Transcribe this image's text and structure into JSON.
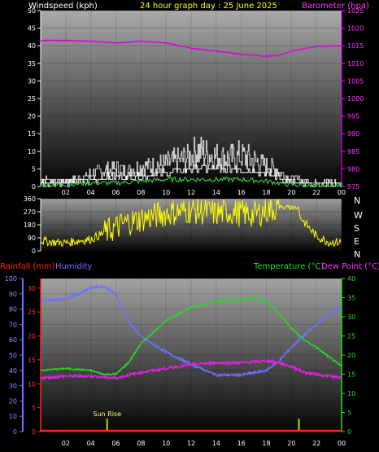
{
  "header": {
    "left": "Windspeed (kph)",
    "center": "24 hour graph day : 25 June 2025",
    "right": "Barometer (hpa)"
  },
  "wind_direction_letters": [
    "N",
    "W",
    "S",
    "E",
    "N"
  ],
  "lower_header": {
    "rainfall": "Rainfall (mm)",
    "humidity": "Humidity",
    "temperature": "Temperature (°C)",
    "dewpoint": "Dew Point (°C)"
  },
  "annotations": {
    "sunrise": "Sun Rise"
  },
  "colors": {
    "wind_avg": "#ffffff",
    "wind_gust": "#cccccc",
    "wind_green": "#44dd44",
    "barometer": "#e000e0",
    "direction": "#ffff00",
    "humidity": "#6f6fff",
    "temperature": "#22dd22",
    "dewpoint": "#e020e0",
    "rainfall": "#ff2222",
    "sunrise": "#cccc00",
    "header_white": "#ffffff",
    "header_yellow": "#ffff00",
    "header_magenta": "#ff33ff"
  },
  "chart_data": [
    {
      "type": "line",
      "name": "wind-barometer",
      "x_ticks": [
        "02",
        "04",
        "06",
        "08",
        "10",
        "12",
        "14",
        "16",
        "18",
        "20",
        "22",
        "00"
      ],
      "left_axis": {
        "label": "Windspeed (kph)",
        "ticks": [
          0,
          5,
          10,
          15,
          20,
          25,
          30,
          35,
          40,
          45,
          50
        ],
        "ylim": [
          0,
          50
        ]
      },
      "right_axis": {
        "label": "Barometer (hpa)",
        "ticks": [
          975,
          980,
          985,
          990,
          995,
          1000,
          1005,
          1010,
          1015,
          1020,
          1025
        ],
        "ylim": [
          975,
          1025
        ]
      },
      "barometer": {
        "x": [
          0,
          2,
          4,
          6,
          8,
          10,
          12,
          14,
          16,
          17,
          18,
          19,
          20,
          22,
          24
        ],
        "y": [
          1016.5,
          1016.5,
          1016.3,
          1015.8,
          1016.3,
          1015.8,
          1014.3,
          1013.5,
          1012.6,
          1012.3,
          1012.0,
          1012.3,
          1013.5,
          1014.8,
          1015.0
        ]
      },
      "wind_gust": {
        "x": [
          0,
          2,
          3,
          4,
          5,
          6,
          7,
          8,
          9,
          10,
          11,
          12,
          12.5,
          13,
          14,
          15,
          16,
          17,
          18,
          19,
          20,
          21,
          22,
          23,
          24
        ],
        "y": [
          3,
          2,
          3,
          5,
          6,
          7,
          6,
          8,
          8,
          9,
          10,
          12,
          14,
          13,
          12,
          11,
          12,
          10,
          8,
          6,
          3,
          2,
          2,
          2,
          1
        ]
      },
      "wind_avg": {
        "x": [
          0,
          2,
          4,
          6,
          8,
          10,
          12,
          14,
          16,
          18,
          20,
          22,
          24
        ],
        "y": [
          1,
          1,
          2,
          3,
          3,
          4,
          5,
          5,
          5,
          4,
          1,
          0,
          0
        ]
      },
      "wind_green": {
        "x": [
          0,
          2,
          4,
          6,
          8,
          10,
          12,
          14,
          16,
          18,
          20,
          22,
          24
        ],
        "y": [
          0.5,
          0.5,
          1,
          1,
          1.5,
          2,
          2,
          2,
          2,
          1.5,
          0.5,
          0,
          0
        ]
      }
    },
    {
      "type": "line",
      "name": "wind-direction",
      "y_ticks": [
        0,
        90,
        180,
        270,
        360
      ],
      "ylim": [
        0,
        360
      ],
      "x": [
        0,
        1,
        2,
        3,
        4,
        5,
        6,
        7,
        8,
        9,
        10,
        11,
        12,
        13,
        14,
        15,
        16,
        17,
        18,
        19,
        20,
        21,
        22,
        23,
        24
      ],
      "y": [
        70,
        60,
        55,
        70,
        80,
        120,
        160,
        200,
        220,
        240,
        260,
        270,
        280,
        270,
        260,
        270,
        260,
        250,
        280,
        300,
        320,
        200,
        100,
        60,
        60
      ]
    },
    {
      "type": "line",
      "name": "rain-humidity-temp-dew",
      "humidity_axis": {
        "label": "Humidity",
        "ticks": [
          0,
          10,
          20,
          30,
          40,
          50,
          60,
          70,
          80,
          90,
          100
        ],
        "ylim": [
          0,
          100
        ]
      },
      "rainfall_axis": {
        "label": "Rainfall (mm)",
        "ticks": [
          0,
          5,
          10,
          15,
          20,
          25,
          30
        ],
        "ylim": [
          0,
          32
        ]
      },
      "temp_axis": {
        "label": "Temperature (°C) Dew Point (°C)",
        "ticks": [
          0,
          5,
          10,
          15,
          20,
          25,
          30,
          35,
          40
        ],
        "ylim": [
          0,
          40
        ]
      },
      "humidity": {
        "x": [
          0,
          1,
          2,
          3,
          4,
          5,
          6,
          7,
          8,
          9,
          10,
          12,
          14,
          16,
          18,
          19,
          20,
          21,
          22,
          23,
          24
        ],
        "y": [
          86,
          86,
          87,
          90,
          94,
          95,
          90,
          72,
          62,
          57,
          52,
          44,
          37,
          37,
          40,
          46,
          55,
          63,
          70,
          77,
          82
        ]
      },
      "temperature": {
        "x": [
          0,
          2,
          4,
          5,
          6,
          7,
          8,
          9,
          10,
          12,
          14,
          16,
          17,
          18,
          19,
          20,
          21,
          22,
          23,
          24
        ],
        "y": [
          16,
          16.5,
          16,
          15,
          15,
          18,
          23,
          26,
          29,
          32.5,
          34,
          34.5,
          35,
          34,
          31,
          27,
          24,
          22,
          19.5,
          17
        ]
      },
      "dewpoint": {
        "x": [
          0,
          2,
          4,
          6,
          8,
          10,
          12,
          14,
          16,
          18,
          19,
          20,
          21,
          22,
          23,
          24
        ],
        "y": [
          14,
          14.5,
          14.5,
          14,
          15.5,
          16.5,
          17.5,
          18,
          18,
          18.5,
          18,
          17,
          15.5,
          15,
          14.5,
          14
        ]
      },
      "rainfall": {
        "x": [
          0,
          24
        ],
        "y": [
          0,
          0
        ]
      },
      "sunrise_hour": 5.3,
      "marker_hour": 20.6
    }
  ]
}
